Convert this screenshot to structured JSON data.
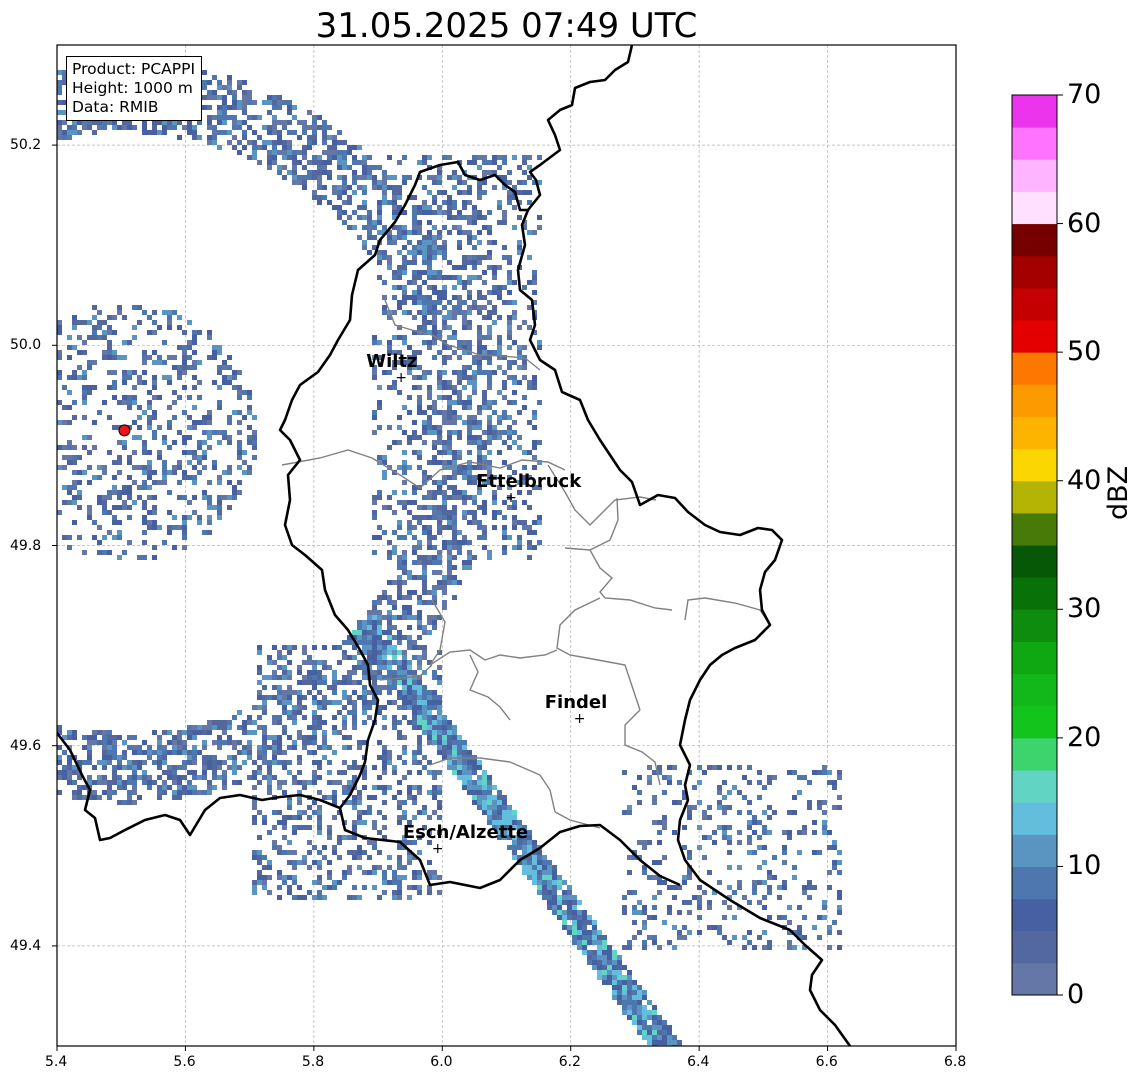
{
  "title": "31.05.2025 07:49 UTC",
  "infobox": {
    "product": "Product: PCAPPI",
    "height": "Height: 1000 m",
    "data": "Data: RMIB"
  },
  "map": {
    "lon_range": [
      5.4,
      6.8
    ],
    "lat_range": [
      49.3,
      50.3
    ],
    "lon_ticks": [
      "5.4",
      "5.6",
      "5.8",
      "6.0",
      "6.2",
      "6.4",
      "6.6",
      "6.8"
    ],
    "lat_ticks": [
      "49.4",
      "49.6",
      "49.8",
      "50.0",
      "50.2"
    ],
    "grid": true,
    "radar_site": {
      "lon": 5.505,
      "lat": 49.915,
      "color": "#e8161b"
    },
    "cities": [
      {
        "name": "Wiltz",
        "lon": 5.933,
        "lat": 49.967
      },
      {
        "name": "Ettelbruck",
        "lon": 6.104,
        "lat": 49.847
      },
      {
        "name": "Findel",
        "lon": 6.211,
        "lat": 49.627
      },
      {
        "name": "Esch/Alzette",
        "lon": 5.99,
        "lat": 49.497
      }
    ],
    "border_color": "#000000",
    "canton_color": "#808080"
  },
  "colorbar": {
    "label": "dBZ",
    "min": 0,
    "max": 70,
    "step": 2.5,
    "tick_labels": [
      "0",
      "10",
      "20",
      "30",
      "40",
      "50",
      "60",
      "70"
    ],
    "colors": [
      "#6577a6",
      "#53689e",
      "#4660a2",
      "#4d77ae",
      "#5a95c2",
      "#63bede",
      "#62d4c4",
      "#3cd46c",
      "#12c41c",
      "#12b81a",
      "#10a812",
      "#0e8c0e",
      "#087208",
      "#065806",
      "#487a08",
      "#b4b404",
      "#fcd600",
      "#fcb400",
      "#fc9a00",
      "#fc7800",
      "#e40000",
      "#c40000",
      "#a40000",
      "#760000",
      "#ffe0ff",
      "#ffb4ff",
      "#ff74ff",
      "#ec34ec"
    ]
  }
}
